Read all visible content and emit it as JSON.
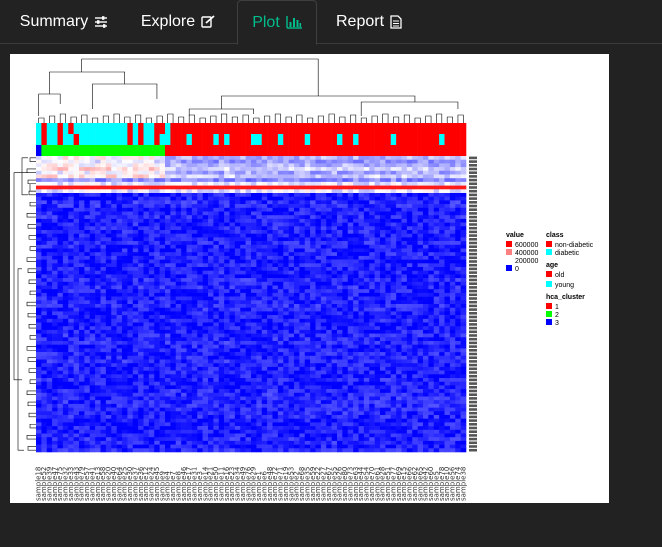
{
  "tabs": [
    {
      "label": "Summary",
      "icon": "sliders-icon",
      "active": false
    },
    {
      "label": "Explore",
      "icon": "edit-icon",
      "active": false
    },
    {
      "label": "Plot",
      "icon": "bar-chart-icon",
      "active": true
    },
    {
      "label": "Report",
      "icon": "file-text-icon",
      "active": false
    }
  ],
  "colors": {
    "background": "#222222",
    "active_tab": "#00bc8c",
    "heat_low": "#0000ff",
    "heat_high": "#ff0000",
    "class_nondiabetic": "#ff0000",
    "class_diabetic": "#00ffff",
    "cluster1": "#ff0000",
    "cluster2": "#00ff00",
    "cluster3": "#0000ff"
  },
  "chart_data": {
    "type": "heatmap",
    "title": "",
    "n_samples": 80,
    "n_features": 80,
    "annotation_class": [
      "diabetic",
      "non-diabetic",
      "diabetic",
      "diabetic",
      "non-diabetic",
      "diabetic",
      "non-diabetic",
      "diabetic",
      "diabetic",
      "diabetic",
      "diabetic",
      "diabetic",
      "diabetic",
      "diabetic",
      "diabetic",
      "diabetic",
      "diabetic",
      "non-diabetic",
      "diabetic",
      "non-diabetic",
      "diabetic",
      "diabetic",
      "non-diabetic",
      "non-diabetic",
      "diabetic",
      "non-diabetic",
      "non-diabetic",
      "non-diabetic",
      "non-diabetic",
      "non-diabetic",
      "non-diabetic",
      "non-diabetic",
      "non-diabetic",
      "non-diabetic",
      "non-diabetic",
      "non-diabetic",
      "non-diabetic",
      "non-diabetic",
      "non-diabetic",
      "non-diabetic",
      "non-diabetic",
      "non-diabetic",
      "non-diabetic",
      "non-diabetic",
      "non-diabetic",
      "non-diabetic",
      "non-diabetic",
      "non-diabetic",
      "non-diabetic",
      "non-diabetic",
      "non-diabetic",
      "non-diabetic",
      "non-diabetic",
      "non-diabetic",
      "non-diabetic",
      "non-diabetic",
      "non-diabetic",
      "non-diabetic",
      "non-diabetic",
      "non-diabetic",
      "non-diabetic",
      "non-diabetic",
      "non-diabetic",
      "non-diabetic",
      "non-diabetic",
      "non-diabetic",
      "non-diabetic",
      "non-diabetic",
      "non-diabetic",
      "non-diabetic",
      "non-diabetic",
      "non-diabetic",
      "non-diabetic",
      "non-diabetic",
      "non-diabetic",
      "non-diabetic",
      "non-diabetic",
      "non-diabetic",
      "non-diabetic",
      "non-diabetic"
    ],
    "annotation_age": [
      "young",
      "old",
      "young",
      "young",
      "old",
      "young",
      "young",
      "old",
      "young",
      "young",
      "young",
      "young",
      "young",
      "young",
      "young",
      "young",
      "young",
      "old",
      "young",
      "old",
      "young",
      "young",
      "old",
      "young",
      "young",
      "old",
      "old",
      "old",
      "young",
      "old",
      "old",
      "old",
      "old",
      "young",
      "old",
      "young",
      "old",
      "old",
      "old",
      "old",
      "young",
      "young",
      "old",
      "old",
      "old",
      "young",
      "old",
      "old",
      "old",
      "old",
      "young",
      "old",
      "old",
      "old",
      "old",
      "old",
      "young",
      "old",
      "old",
      "young",
      "old",
      "old",
      "old",
      "old",
      "old",
      "old",
      "young",
      "old",
      "old",
      "old",
      "old",
      "old",
      "old",
      "old",
      "old",
      "young",
      "old",
      "old",
      "old",
      "old"
    ],
    "annotation_cluster": [
      3,
      2,
      2,
      2,
      2,
      2,
      2,
      2,
      2,
      2,
      2,
      2,
      2,
      2,
      2,
      2,
      2,
      2,
      2,
      2,
      2,
      2,
      2,
      2,
      1,
      1,
      1,
      1,
      1,
      1,
      1,
      1,
      1,
      1,
      1,
      1,
      1,
      1,
      1,
      1,
      1,
      1,
      1,
      1,
      1,
      1,
      1,
      1,
      1,
      1,
      1,
      1,
      1,
      1,
      1,
      1,
      1,
      1,
      1,
      1,
      1,
      1,
      1,
      1,
      1,
      1,
      1,
      1,
      1,
      1,
      1,
      1,
      1,
      1,
      1,
      1,
      1,
      1,
      1,
      1
    ],
    "sample_labels": [
      "sample18",
      "sample52",
      "sample39",
      "sample47",
      "sample75",
      "sample32",
      "sample33",
      "sample43",
      "sample79",
      "sample57",
      "sample41",
      "sample13",
      "sample58",
      "sample20",
      "sample40",
      "sample64",
      "sample25",
      "sample30",
      "sample37",
      "sample36",
      "sample12",
      "sample24",
      "sample45",
      "sample9",
      "sample4",
      "sample7",
      "sample8",
      "sample46",
      "sample17",
      "sample31",
      "sample3",
      "sample14",
      "sample21",
      "sample50",
      "sample11",
      "sample16",
      "sample23",
      "sample34",
      "sample49",
      "sample76",
      "sample29",
      "sample1",
      "sample6",
      "sample48",
      "sample72",
      "sample71",
      "sample19",
      "sample53",
      "sample2",
      "sample68",
      "sample35",
      "sample59",
      "sample22",
      "sample27",
      "sample67",
      "sample55",
      "sample26",
      "sample80",
      "sample73",
      "sample63",
      "sample44",
      "sample54",
      "sample70",
      "sample61",
      "sample28",
      "sample51",
      "sample77",
      "sample69",
      "sample15",
      "sample66",
      "sample62",
      "sample65",
      "sample42",
      "sample60",
      "sample5",
      "sample78",
      "sample10",
      "sample56",
      "sample74",
      "sample38"
    ],
    "legend": {
      "value_title": "value",
      "value_entries": [
        "600000",
        "400000",
        "200000",
        "0"
      ],
      "class_title": "class",
      "class_entries": [
        "non-diabetic",
        "diabetic"
      ],
      "age_title": "age",
      "age_entries": [
        "old",
        "young"
      ],
      "cluster_title": "hca_cluster",
      "cluster_entries": [
        "1",
        "2",
        "3"
      ]
    }
  }
}
